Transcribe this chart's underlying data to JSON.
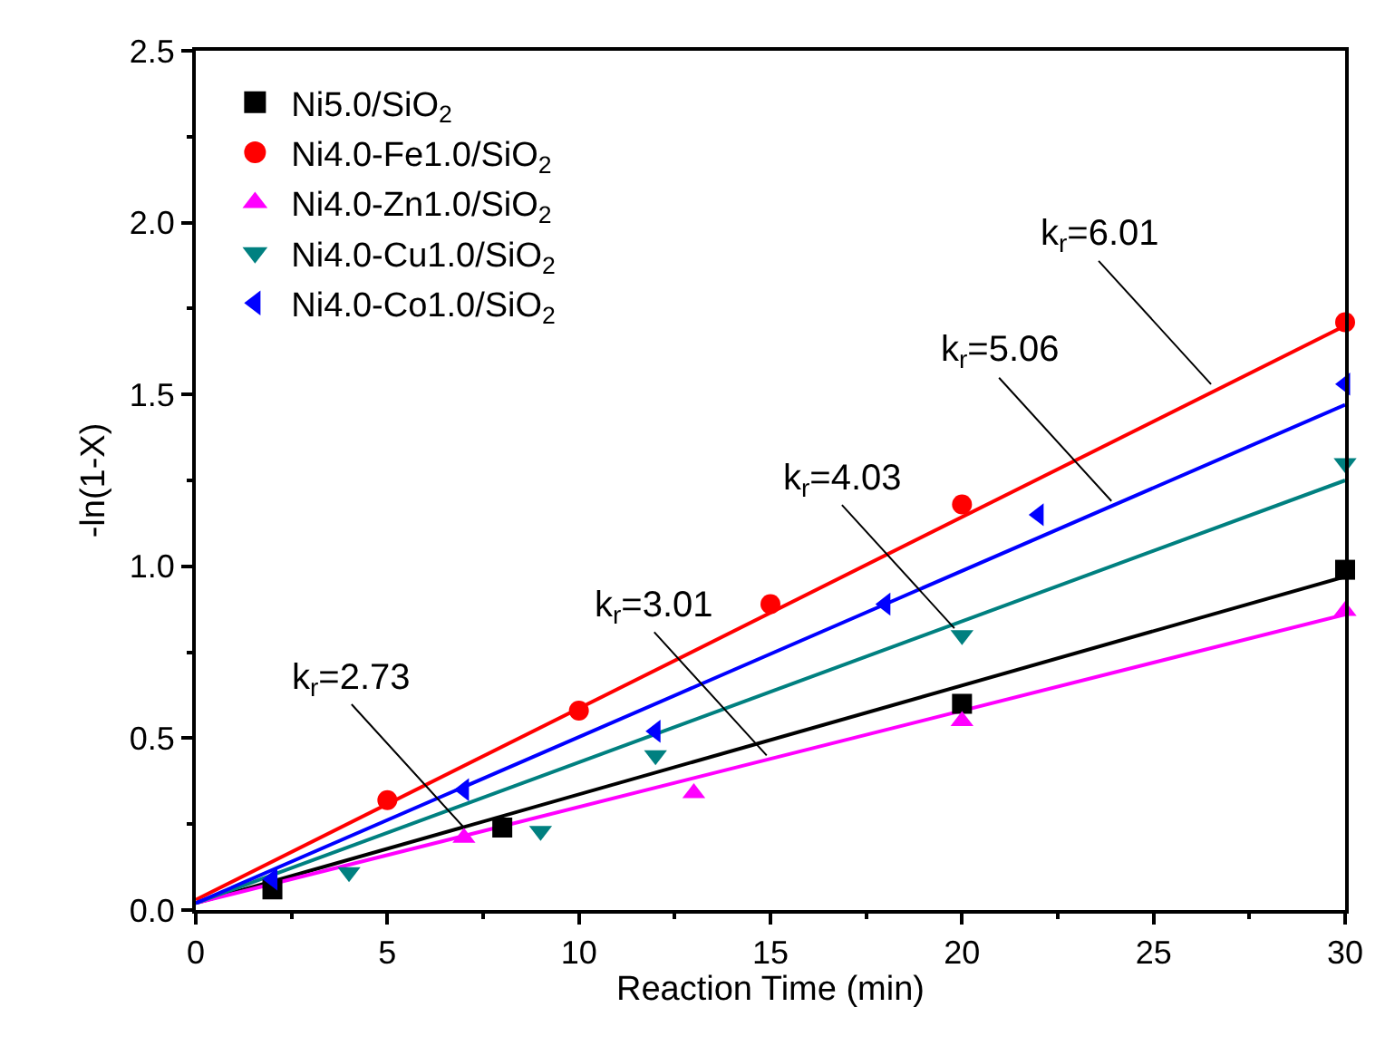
{
  "chart_data": {
    "type": "scatter",
    "xlabel": "Reaction Time (min)",
    "ylabel": "-ln(1-X)",
    "xlim": [
      0,
      30
    ],
    "ylim": [
      0,
      2.5
    ],
    "xticks": [
      0,
      5,
      10,
      15,
      20,
      25,
      30
    ],
    "yticks": [
      {
        "value": 0,
        "label": "0.0"
      },
      0.5,
      {
        "value": 1,
        "label": "1.0"
      },
      1.5,
      {
        "value": 2,
        "label": "2.0"
      },
      2.5
    ],
    "legend": "top left",
    "series": [
      {
        "name": "Ni5.0/SiO$_{2}$",
        "color": "#000000",
        "marker": "square",
        "x": [
          2,
          8,
          20,
          30
        ],
        "values": [
          0.06,
          0.24,
          0.6,
          0.99
        ]
      },
      {
        "name": "Ni4.0-Fe1.0/SiO$_{2}$",
        "color": "#ff0000",
        "marker": "circle",
        "x": [
          5,
          10,
          15,
          20,
          30
        ],
        "values": [
          0.32,
          0.58,
          0.89,
          1.18,
          1.71
        ]
      },
      {
        "name": "Ni4.0-Zn1.0/SiO$_{2}$",
        "color": "#ff00ff",
        "marker": "triangle",
        "x": [
          7,
          13,
          20,
          30
        ],
        "values": [
          0.21,
          0.34,
          0.55,
          0.87
        ]
      },
      {
        "name": "Ni4.0-Cu1.0/SiO$_{2}$",
        "color": "#008080",
        "marker": "triangle-down",
        "x": [
          4,
          9,
          12,
          20,
          30
        ],
        "values": [
          0.11,
          0.23,
          0.45,
          0.8,
          1.3
        ]
      },
      {
        "name": "Ni4.0-Co1.0/SiO$_{2}$",
        "color": "#0000ff",
        "marker": "triangle-left",
        "x": [
          2,
          7,
          12,
          18,
          22,
          30
        ],
        "values": [
          0.09,
          0.35,
          0.52,
          0.89,
          1.15,
          1.53
        ]
      },
      {
        "type": "line",
        "color": "#000000",
        "x": [
          0,
          30
        ],
        "values": [
          0.02,
          0.97
        ]
      },
      {
        "type": "line",
        "color": "#ff0000",
        "x": [
          0,
          30
        ],
        "values": [
          0.03,
          1.7
        ]
      },
      {
        "type": "line",
        "color": "#ff00ff",
        "x": [
          0,
          30
        ],
        "values": [
          0.02,
          0.86
        ]
      },
      {
        "type": "line",
        "color": "#008080",
        "x": [
          0,
          30
        ],
        "values": [
          0.02,
          1.25
        ]
      },
      {
        "type": "line",
        "color": "#0000ff",
        "x": [
          0,
          30
        ],
        "values": [
          0.02,
          1.47
        ]
      }
    ],
    "annotations": [
      {
        "text": "k$_{r}$=6.01",
        "x": 26.5,
        "y": 1.53
      },
      {
        "text": "k$_{r}$=5.06",
        "x": 23.9,
        "y": 1.19
      },
      {
        "text": "k$_{r}$=4.03",
        "x": 19.8,
        "y": 0.82
      },
      {
        "text": "k$_{r}$=3.01",
        "x": 14.9,
        "y": 0.45
      },
      {
        "text": "k$_{r}$=2.73",
        "x": 7.0,
        "y": 0.24
      }
    ]
  }
}
